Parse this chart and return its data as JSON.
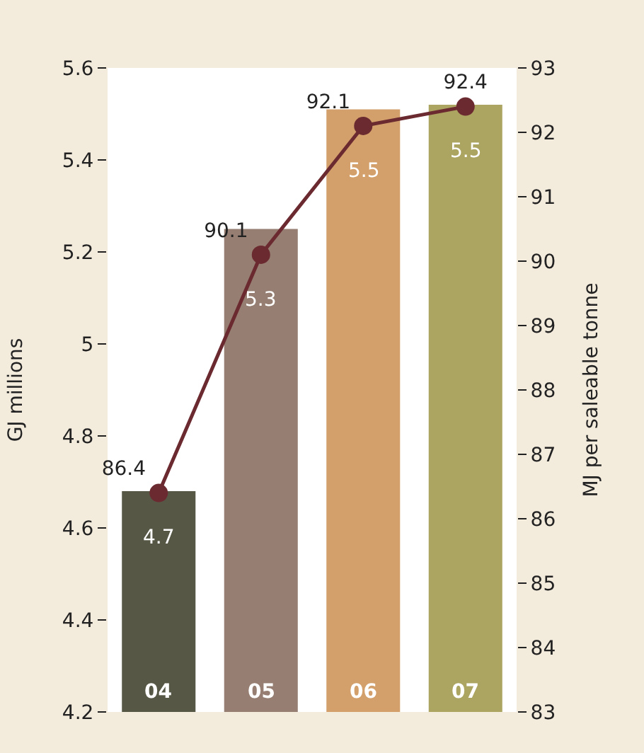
{
  "chart_data": {
    "type": "bar",
    "ylabel": "GJ millions",
    "y2label": "MJ per saleable tonne",
    "categories": [
      "04",
      "05",
      "06",
      "07"
    ],
    "series": [
      {
        "type": "bar",
        "colors": [
          "#575746",
          "#967f72",
          "#d3a06c",
          "#aca461"
        ],
        "values": [
          4.68,
          5.25,
          5.51,
          5.52
        ],
        "value_labels": [
          "4.7",
          "5.3",
          "5.5",
          "5.5"
        ]
      },
      {
        "type": "line",
        "axis": "y2",
        "color": "#6b2a30",
        "values": [
          86.4,
          90.1,
          92.1,
          92.4
        ],
        "data_labels": true,
        "marker": "circle"
      }
    ],
    "ylim": [
      4.2,
      5.6
    ],
    "yticks": [
      4.2,
      4.4,
      4.6,
      4.8,
      5.0,
      5.2,
      5.4,
      5.6
    ],
    "y2lim": [
      83,
      93
    ],
    "y2ticks": [
      83,
      84,
      85,
      86,
      87,
      88,
      89,
      90,
      91,
      92,
      93
    ],
    "grid": false
  }
}
